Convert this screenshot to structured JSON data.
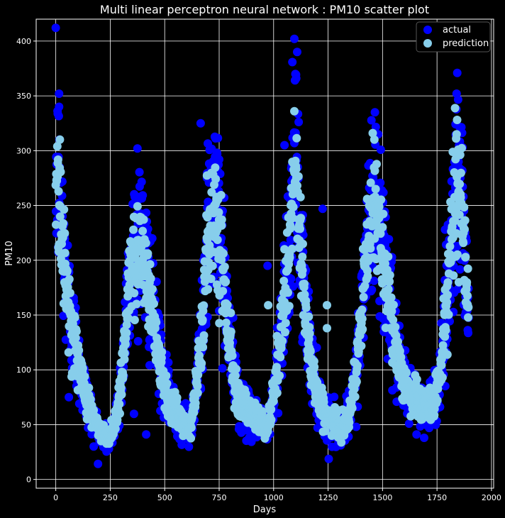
{
  "chart_data": {
    "type": "scatter",
    "title": "Multi linear perceptron neural network : PM10 scatter plot",
    "xlabel": "Days",
    "ylabel": "PM10",
    "xlim": [
      -90,
      2010
    ],
    "ylim": [
      -8,
      420
    ],
    "xticks": [
      0,
      250,
      500,
      750,
      1000,
      1250,
      1500,
      1750,
      2000
    ],
    "yticks": [
      0,
      50,
      100,
      150,
      200,
      250,
      300,
      350,
      400
    ],
    "grid": true,
    "legend": "top-right",
    "background": "#000000",
    "series": [
      {
        "name": "actual",
        "color": "#0000ff",
        "control_x": [
          0,
          15,
          40,
          75,
          110,
          145,
          180,
          210,
          240,
          265,
          285,
          310,
          335,
          360,
          385,
          410,
          440,
          470,
          500,
          530,
          560,
          590,
          620,
          650,
          675,
          700,
          730,
          760,
          790,
          820,
          850,
          880,
          910,
          940,
          970,
          1000,
          1030,
          1060,
          1085,
          1100,
          1120,
          1140,
          1165,
          1190,
          1220,
          1250,
          1280,
          1310,
          1340,
          1370,
          1400,
          1430,
          1460,
          1490,
          1520,
          1545,
          1575,
          1605,
          1640,
          1670,
          1700,
          1735,
          1760,
          1790,
          1820,
          1840,
          1860,
          1880,
          1895
        ],
        "control_y": [
          280,
          270,
          195,
          140,
          100,
          70,
          50,
          40,
          35,
          48,
          65,
          110,
          175,
          210,
          220,
          200,
          160,
          120,
          85,
          70,
          60,
          52,
          48,
          90,
          150,
          225,
          260,
          210,
          140,
          90,
          70,
          60,
          55,
          50,
          45,
          75,
          130,
          190,
          250,
          280,
          230,
          170,
          120,
          85,
          65,
          55,
          50,
          48,
          55,
          80,
          140,
          220,
          250,
          230,
          190,
          140,
          100,
          85,
          75,
          70,
          68,
          70,
          90,
          150,
          230,
          290,
          270,
          200,
          160
        ],
        "spread": 0.17,
        "points_per_day": 1.0,
        "outliers": [
          [
            15,
            352
          ],
          [
            1095,
            402
          ],
          [
            1108,
            390
          ],
          [
            1100,
            370
          ],
          [
            1465,
            335
          ],
          [
            1840,
            352
          ],
          [
            665,
            325
          ],
          [
            1050,
            305
          ],
          [
            1225,
            247
          ],
          [
            750,
            292
          ],
          [
            375,
            302
          ],
          [
            972,
            195
          ],
          [
            1480,
            315
          ],
          [
            60,
            75
          ],
          [
            415,
            41
          ]
        ]
      },
      {
        "name": "prediction",
        "color": "#87ceeb",
        "control_x": [
          0,
          15,
          40,
          75,
          110,
          145,
          180,
          210,
          240,
          265,
          285,
          310,
          335,
          360,
          385,
          410,
          440,
          470,
          500,
          530,
          560,
          590,
          620,
          650,
          675,
          700,
          730,
          760,
          790,
          820,
          850,
          880,
          910,
          940,
          970,
          1000,
          1030,
          1060,
          1085,
          1100,
          1120,
          1140,
          1165,
          1190,
          1220,
          1250,
          1280,
          1310,
          1340,
          1370,
          1400,
          1430,
          1460,
          1490,
          1520,
          1545,
          1575,
          1605,
          1640,
          1670,
          1700,
          1735,
          1760,
          1790,
          1820,
          1840,
          1860,
          1880,
          1895
        ],
        "control_y": [
          270,
          260,
          190,
          140,
          100,
          72,
          52,
          42,
          38,
          48,
          66,
          110,
          175,
          205,
          215,
          195,
          158,
          118,
          84,
          70,
          60,
          52,
          50,
          92,
          150,
          222,
          255,
          205,
          140,
          92,
          72,
          62,
          56,
          51,
          46,
          76,
          128,
          185,
          245,
          275,
          225,
          168,
          120,
          86,
          66,
          56,
          51,
          50,
          56,
          82,
          140,
          215,
          245,
          225,
          188,
          140,
          100,
          86,
          76,
          70,
          68,
          70,
          92,
          150,
          228,
          285,
          265,
          198,
          160
        ],
        "spread": 0.11,
        "points_per_day": 0.85,
        "outliers": [
          [
            1095,
            336
          ],
          [
            1455,
            316
          ],
          [
            975,
            159
          ],
          [
            1245,
            159
          ],
          [
            1245,
            138
          ],
          [
            420,
            190
          ],
          [
            1050,
            210
          ],
          [
            1840,
            315
          ],
          [
            1850,
            180
          ]
        ]
      }
    ]
  }
}
